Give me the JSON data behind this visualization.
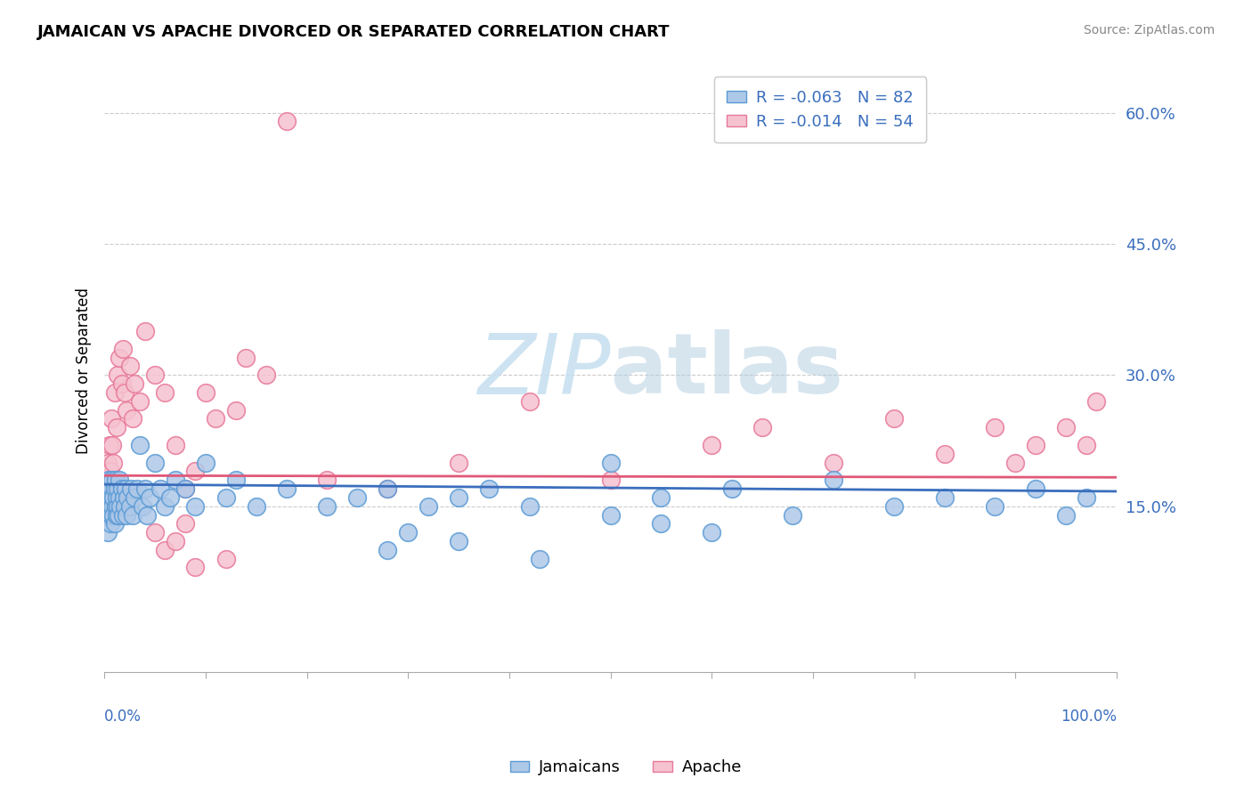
{
  "title": "JAMAICAN VS APACHE DIVORCED OR SEPARATED CORRELATION CHART",
  "source": "Source: ZipAtlas.com",
  "ylabel": "Divorced or Separated",
  "legend_jamaicans": "Jamaicans",
  "legend_apache": "Apache",
  "r_jamaican": -0.063,
  "n_jamaican": 82,
  "r_apache": -0.014,
  "n_apache": 54,
  "blue_marker_face": "#aec8e8",
  "blue_marker_edge": "#5b9bd5",
  "pink_marker_face": "#f5c2d0",
  "pink_marker_edge": "#e8789a",
  "line_blue": "#3a6ebd",
  "line_pink": "#e05878",
  "grid_color": "#cccccc",
  "watermark_color": "#c8e0f0",
  "xlim": [
    0.0,
    1.0
  ],
  "ylim": [
    -0.04,
    0.65
  ],
  "ytick_vals": [
    0.15,
    0.3,
    0.45,
    0.6
  ],
  "ytick_labels": [
    "15.0%",
    "30.0%",
    "45.0%",
    "60.0%"
  ],
  "jam_intercept": 0.175,
  "jam_slope": -0.008,
  "apa_intercept": 0.185,
  "apa_slope": -0.002,
  "jam_x": [
    0.001,
    0.002,
    0.003,
    0.003,
    0.004,
    0.004,
    0.005,
    0.005,
    0.006,
    0.006,
    0.007,
    0.007,
    0.008,
    0.008,
    0.009,
    0.009,
    0.01,
    0.01,
    0.011,
    0.011,
    0.012,
    0.012,
    0.013,
    0.013,
    0.014,
    0.015,
    0.015,
    0.016,
    0.017,
    0.018,
    0.019,
    0.02,
    0.021,
    0.022,
    0.023,
    0.025,
    0.026,
    0.028,
    0.03,
    0.032,
    0.035,
    0.038,
    0.04,
    0.042,
    0.045,
    0.05,
    0.055,
    0.06,
    0.065,
    0.07,
    0.08,
    0.09,
    0.1,
    0.12,
    0.13,
    0.15,
    0.18,
    0.22,
    0.25,
    0.28,
    0.32,
    0.35,
    0.38,
    0.42,
    0.5,
    0.55,
    0.62,
    0.68,
    0.72,
    0.78,
    0.83,
    0.88,
    0.92,
    0.95,
    0.97,
    0.28,
    0.3,
    0.35,
    0.43,
    0.5,
    0.55,
    0.6
  ],
  "jam_y": [
    0.14,
    0.16,
    0.12,
    0.17,
    0.15,
    0.18,
    0.14,
    0.16,
    0.13,
    0.17,
    0.14,
    0.16,
    0.15,
    0.18,
    0.14,
    0.16,
    0.13,
    0.17,
    0.15,
    0.18,
    0.14,
    0.16,
    0.15,
    0.17,
    0.14,
    0.16,
    0.18,
    0.15,
    0.17,
    0.14,
    0.16,
    0.15,
    0.17,
    0.14,
    0.16,
    0.15,
    0.17,
    0.14,
    0.16,
    0.17,
    0.22,
    0.15,
    0.17,
    0.14,
    0.16,
    0.2,
    0.17,
    0.15,
    0.16,
    0.18,
    0.17,
    0.15,
    0.2,
    0.16,
    0.18,
    0.15,
    0.17,
    0.15,
    0.16,
    0.17,
    0.15,
    0.16,
    0.17,
    0.15,
    0.2,
    0.16,
    0.17,
    0.14,
    0.18,
    0.15,
    0.16,
    0.15,
    0.17,
    0.14,
    0.16,
    0.1,
    0.12,
    0.11,
    0.09,
    0.14,
    0.13,
    0.12
  ],
  "apa_x": [
    0.001,
    0.003,
    0.004,
    0.005,
    0.006,
    0.007,
    0.008,
    0.009,
    0.01,
    0.012,
    0.013,
    0.015,
    0.017,
    0.018,
    0.02,
    0.022,
    0.025,
    0.028,
    0.03,
    0.035,
    0.04,
    0.05,
    0.06,
    0.07,
    0.08,
    0.09,
    0.1,
    0.11,
    0.13,
    0.14,
    0.16,
    0.18,
    0.22,
    0.28,
    0.35,
    0.42,
    0.5,
    0.6,
    0.65,
    0.72,
    0.78,
    0.83,
    0.88,
    0.9,
    0.92,
    0.95,
    0.97,
    0.98,
    0.05,
    0.12,
    0.06,
    0.07,
    0.08,
    0.09
  ],
  "apa_y": [
    0.15,
    0.2,
    0.18,
    0.22,
    0.19,
    0.25,
    0.22,
    0.2,
    0.28,
    0.24,
    0.3,
    0.32,
    0.29,
    0.33,
    0.28,
    0.26,
    0.31,
    0.25,
    0.29,
    0.27,
    0.35,
    0.3,
    0.28,
    0.22,
    0.17,
    0.19,
    0.28,
    0.25,
    0.26,
    0.32,
    0.3,
    0.59,
    0.18,
    0.17,
    0.2,
    0.27,
    0.18,
    0.22,
    0.24,
    0.2,
    0.25,
    0.21,
    0.24,
    0.2,
    0.22,
    0.24,
    0.22,
    0.27,
    0.12,
    0.09,
    0.1,
    0.11,
    0.13,
    0.08
  ]
}
